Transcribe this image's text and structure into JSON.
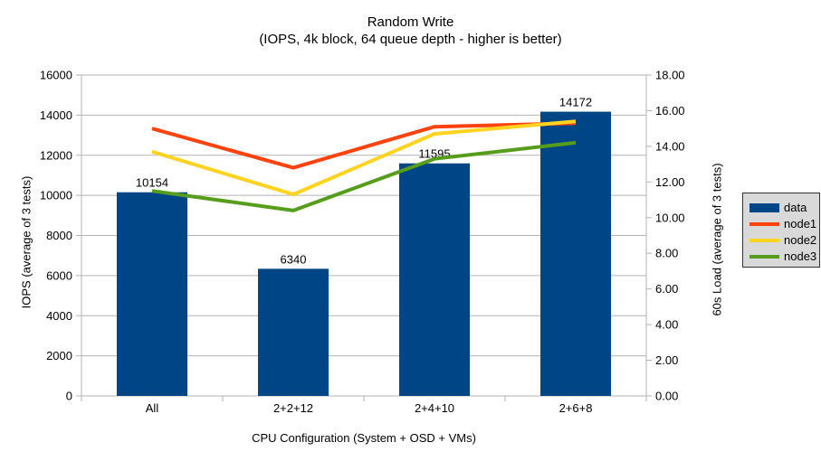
{
  "title": {
    "line1": "Random Write",
    "line2": "(IOPS, 4k block, 64 queue depth - higher is better)"
  },
  "chart_data": {
    "type": "bar+line",
    "categories": [
      "All",
      "2+2+12",
      "2+4+10",
      "2+6+8"
    ],
    "series": [
      {
        "name": "data",
        "type": "bar",
        "axis": "left",
        "color": "#004586",
        "values": [
          10154,
          6340,
          11595,
          14172
        ],
        "data_labels": [
          "10154",
          "6340",
          "11595",
          "14172"
        ]
      },
      {
        "name": "node1",
        "type": "line",
        "axis": "right",
        "color": "#ff420e",
        "values": [
          15.0,
          12.8,
          15.1,
          15.3
        ]
      },
      {
        "name": "node2",
        "type": "line",
        "axis": "right",
        "color": "#ffd320",
        "values": [
          13.7,
          11.3,
          14.7,
          15.4
        ]
      },
      {
        "name": "node3",
        "type": "line",
        "axis": "right",
        "color": "#579d1c",
        "values": [
          11.5,
          10.4,
          13.3,
          14.2
        ]
      }
    ],
    "xlabel": "CPU Configuration (System + OSD + VMs)",
    "ylabel_left": "IOPS (average of 3 tests)",
    "ylabel_right": "60s Load (average of 3 tests)",
    "yleft": {
      "min": 0,
      "max": 16000,
      "step": 2000
    },
    "yright": {
      "min": 0,
      "max": 18,
      "step": 2
    },
    "yleft_ticks": [
      "0",
      "2000",
      "4000",
      "6000",
      "8000",
      "10000",
      "12000",
      "14000",
      "16000"
    ],
    "yright_ticks": [
      "0.00",
      "2.00",
      "4.00",
      "6.00",
      "8.00",
      "10.00",
      "12.00",
      "14.00",
      "16.00",
      "18.00"
    ],
    "grid": true,
    "legend_position": "right",
    "grid_color": "#b3b3b3",
    "text_color": "#000000",
    "legend_bg": "#d9d9d9"
  }
}
